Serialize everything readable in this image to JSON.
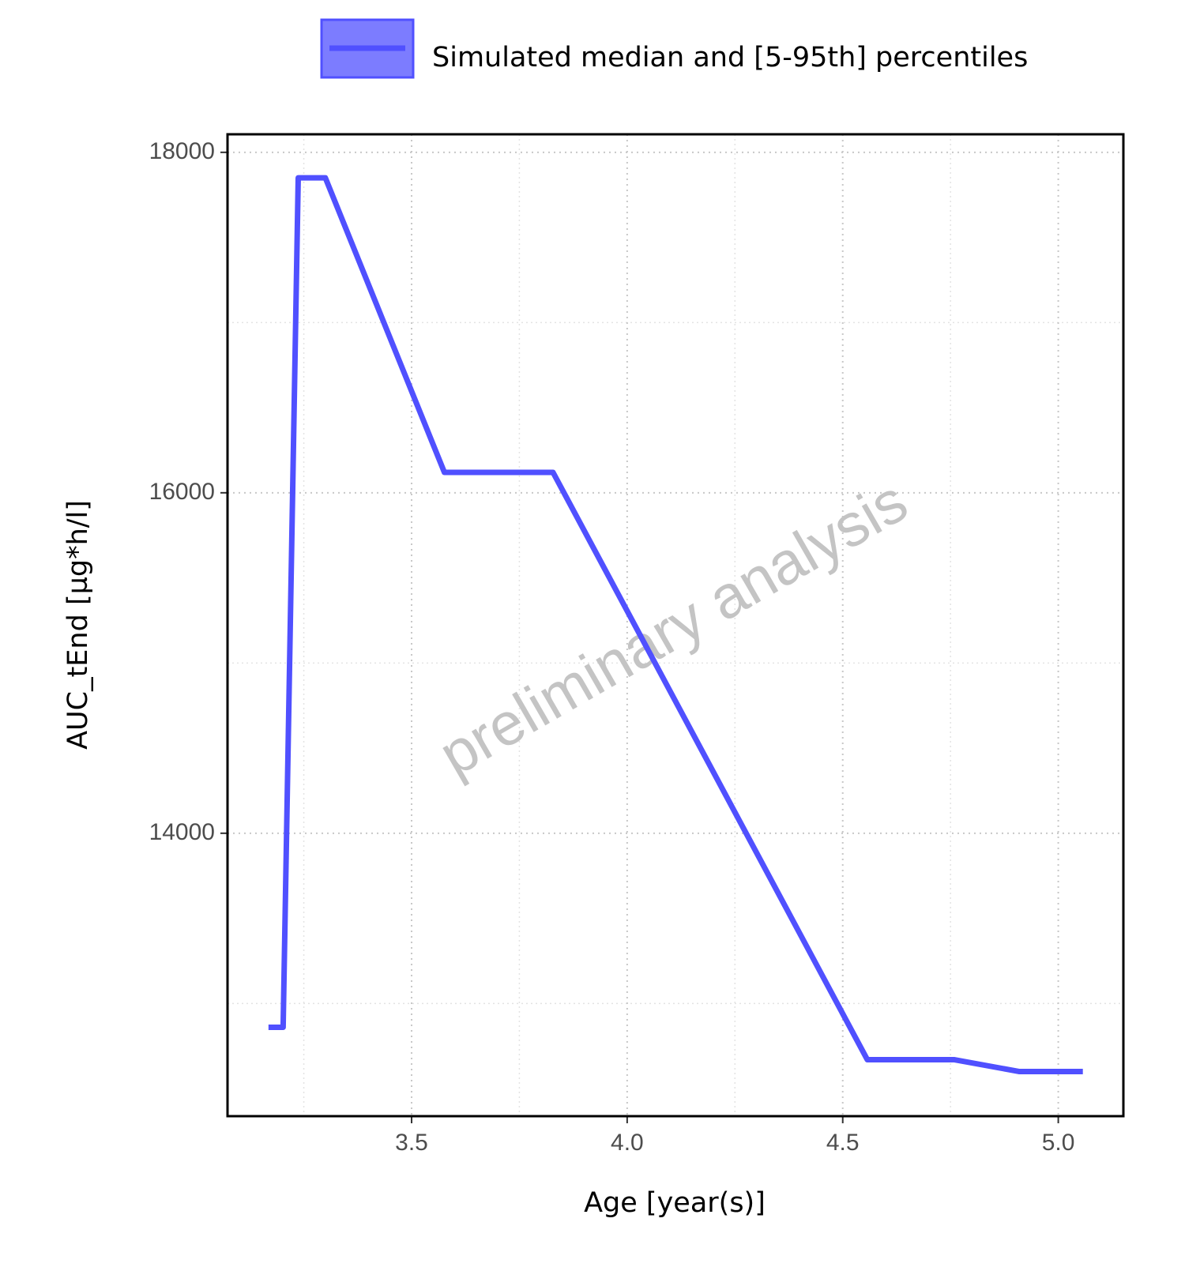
{
  "chart_data": {
    "type": "line",
    "x_label": "Age [year(s)]",
    "y_label": "AUC_tEnd [µg*h/l]",
    "watermark": "preliminary analysis",
    "x": [
      3.168,
      3.202,
      3.237,
      3.3,
      3.576,
      3.828,
      4.557,
      4.758,
      4.91,
      5.057
    ],
    "series": [
      {
        "name": "Simulated median and [5-95th] percentiles",
        "color": "#5050ff",
        "values": [
          12860,
          12860,
          17850,
          17850,
          16120,
          16120,
          12670,
          12670,
          12600,
          12600
        ]
      }
    ],
    "xlim": [
      3.073,
      5.151
    ],
    "xticks": [
      {
        "value": 3.5,
        "label": "3.5"
      },
      {
        "value": 4.0,
        "label": "4.0"
      },
      {
        "value": 4.5,
        "label": "4.5"
      },
      {
        "value": 5.0,
        "label": "5.0"
      }
    ],
    "ylim": [
      12338,
      18106
    ],
    "yticks": [
      14000,
      16000,
      18000
    ],
    "grid": true,
    "legend_position": "top"
  }
}
